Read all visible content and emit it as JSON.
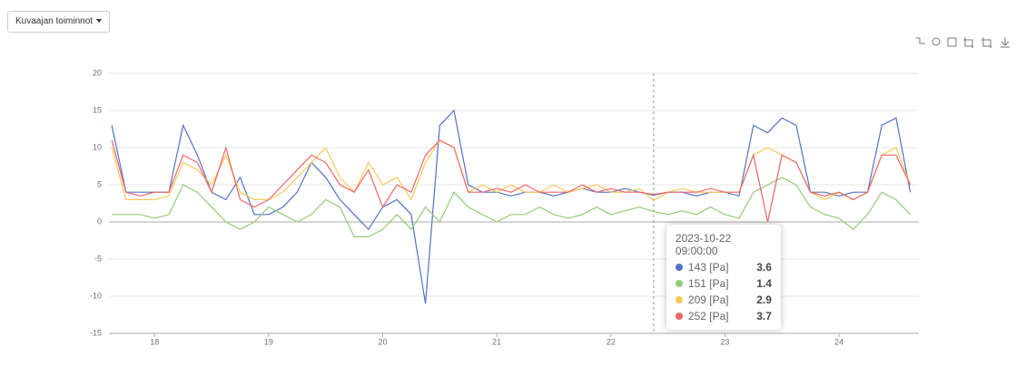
{
  "toolbar": {
    "button": "Kuvaajan toiminnot"
  },
  "chart_data": {
    "type": "line",
    "grid": true,
    "x": [
      17.625,
      17.75,
      17.875,
      18,
      18.125,
      18.25,
      18.375,
      18.5,
      18.625,
      18.75,
      18.875,
      19,
      19.125,
      19.25,
      19.375,
      19.5,
      19.625,
      19.75,
      19.875,
      20,
      20.125,
      20.25,
      20.375,
      20.5,
      20.625,
      20.75,
      20.875,
      21,
      21.125,
      21.25,
      21.375,
      21.5,
      21.625,
      21.75,
      21.875,
      22,
      22.125,
      22.25,
      22.375,
      22.5,
      22.625,
      22.75,
      22.875,
      23,
      23.125,
      23.25,
      23.375,
      23.5,
      23.625,
      23.75,
      23.875,
      24,
      24.125,
      24.25,
      24.375,
      24.5,
      24.625
    ],
    "xlim": [
      17.6,
      24.7
    ],
    "xticks": [
      18,
      19,
      20,
      21,
      22,
      23,
      24
    ],
    "ylim": [
      -15,
      20
    ],
    "yticks": [
      -15,
      -10,
      -5,
      0,
      5,
      10,
      15,
      20
    ],
    "series": [
      {
        "name": "143 [Pa]",
        "color": "#5470c6",
        "values": [
          13,
          4,
          4,
          4,
          4,
          13,
          9,
          4,
          3,
          6,
          1,
          1,
          2,
          4,
          8,
          6,
          3,
          1,
          -1,
          2,
          3,
          1,
          -11,
          13,
          15,
          5,
          4,
          4,
          3.5,
          4,
          4,
          3.5,
          4,
          4.5,
          4,
          4,
          4.5,
          4,
          3.6,
          4,
          4,
          3.5,
          4,
          4,
          3.5,
          13,
          12,
          14,
          13,
          4,
          4,
          3.5,
          4,
          4,
          13,
          14,
          4
        ]
      },
      {
        "name": "151 [Pa]",
        "color": "#91cc75",
        "values": [
          1,
          1,
          1,
          0.5,
          1,
          5,
          4,
          2,
          0,
          -1,
          0,
          2,
          1,
          0,
          1,
          3,
          2,
          -2,
          -2,
          -1,
          1,
          -1,
          2,
          0,
          4,
          2,
          1,
          0,
          1,
          1,
          2,
          1,
          0.5,
          1,
          2,
          1,
          1.5,
          2,
          1.4,
          1,
          1.5,
          1,
          2,
          1,
          0.5,
          4,
          5,
          6,
          5,
          2,
          1,
          0.5,
          -1,
          1,
          4,
          3,
          1
        ]
      },
      {
        "name": "209 [Pa]",
        "color": "#fac858",
        "values": [
          10,
          3,
          3,
          3,
          3.5,
          8,
          7,
          5,
          9,
          4,
          3,
          3,
          4,
          6,
          8,
          10,
          6,
          4,
          8,
          5,
          6,
          3,
          8,
          11,
          10,
          4,
          5,
          4,
          5,
          4,
          4,
          5,
          4,
          4.5,
          5,
          4,
          4,
          4.5,
          2.9,
          4,
          4.5,
          4,
          4,
          4,
          4,
          9,
          10,
          9,
          8,
          4,
          3,
          4,
          3,
          4,
          9,
          10,
          5
        ]
      },
      {
        "name": "252 [Pa]",
        "color": "#ee6666",
        "values": [
          11,
          4,
          3.5,
          4,
          4,
          9,
          8,
          4,
          10,
          3,
          2,
          3,
          5,
          7,
          9,
          8,
          5,
          4,
          7,
          2,
          5,
          4,
          9,
          11,
          10,
          4,
          4,
          4.5,
          4,
          5,
          4,
          4,
          4,
          5,
          4,
          4.5,
          4,
          4,
          3.7,
          4,
          4,
          4,
          4.5,
          4,
          4,
          9,
          0,
          9,
          8,
          4,
          3.5,
          4,
          3,
          4,
          9,
          9,
          5
        ]
      }
    ],
    "tooltip": {
      "x": 22.375,
      "title": "2023-10-22 09:00:00"
    }
  }
}
